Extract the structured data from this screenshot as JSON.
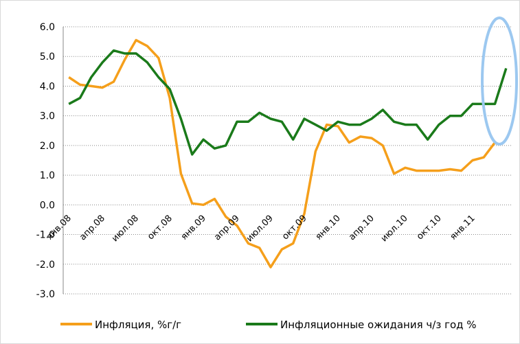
{
  "chart_data": {
    "type": "line",
    "categories": [
      "янв.08",
      null,
      null,
      "апр.08",
      null,
      null,
      "июл.08",
      null,
      null,
      "окт.08",
      null,
      null,
      "янв.09",
      null,
      null,
      "апр.09",
      null,
      null,
      "июл.09",
      null,
      null,
      "окт.09",
      null,
      null,
      "янв.10",
      null,
      null,
      "апр.10",
      null,
      null,
      "июл.10",
      null,
      null,
      "окт.10",
      null,
      null,
      "янв.11",
      null,
      null,
      null
    ],
    "series": [
      {
        "name": "Инфляция, %г/г",
        "color": "#f59f1b",
        "values": [
          4.3,
          4.05,
          4.0,
          3.95,
          4.15,
          4.9,
          5.55,
          5.35,
          4.95,
          3.6,
          1.05,
          0.05,
          0.0,
          0.2,
          -0.4,
          -0.7,
          -1.3,
          -1.45,
          -2.1,
          -1.5,
          -1.3,
          -0.3,
          1.8,
          2.7,
          2.65,
          2.1,
          2.3,
          2.25,
          2.0,
          1.05,
          1.25,
          1.15,
          1.15,
          1.15,
          1.2,
          1.15,
          1.5,
          1.6,
          2.1,
          null
        ]
      },
      {
        "name": "Инфляционные ожидания ч/з год %",
        "color": "#1a7a1a",
        "values": [
          3.4,
          3.6,
          4.3,
          4.8,
          5.2,
          5.1,
          5.1,
          4.8,
          4.3,
          3.9,
          2.9,
          1.7,
          2.2,
          1.9,
          2.0,
          2.8,
          2.8,
          3.1,
          2.9,
          2.8,
          2.2,
          2.9,
          2.7,
          2.5,
          2.8,
          2.7,
          2.7,
          2.9,
          3.2,
          2.8,
          2.7,
          2.7,
          2.2,
          2.7,
          3.0,
          3.0,
          3.4,
          3.4,
          3.4,
          4.6
        ]
      }
    ],
    "ylim": [
      -3.0,
      6.0
    ],
    "yticks": [
      {
        "value": 6.0,
        "label": "6.0"
      },
      {
        "value": 5.0,
        "label": "5.0"
      },
      {
        "value": 4.0,
        "label": "4.0"
      },
      {
        "value": 3.0,
        "label": "3.0"
      },
      {
        "value": 2.0,
        "label": "2.0"
      },
      {
        "value": 1.0,
        "label": "1.0"
      },
      {
        "value": 0.0,
        "label": "0.0"
      },
      {
        "value": -1.0,
        "label": "-1.0"
      },
      {
        "value": -2.0,
        "label": "-2.0"
      },
      {
        "value": -3.0,
        "label": "-3.0"
      }
    ],
    "grid": true
  }
}
